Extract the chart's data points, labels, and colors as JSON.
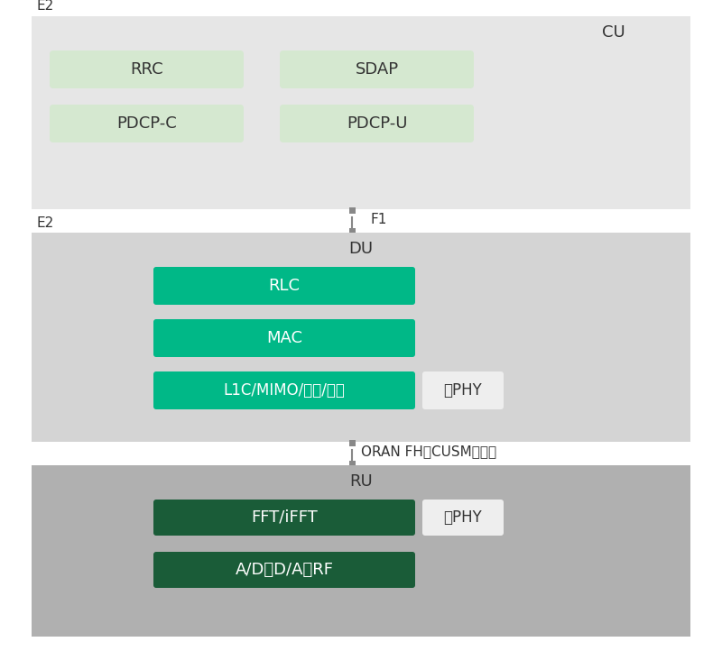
{
  "bg_color": "#ffffff",
  "cu_bg": "#e6e6e6",
  "du_bg": "#d4d4d4",
  "ru_bg": "#b0b0b0",
  "cu_box_fill": "#d5e8d0",
  "du_box_fill": "#00b887",
  "ru_box_fill": "#1a5c38",
  "phy_box_fill": "#eeeeee",
  "white_text": "#ffffff",
  "dark_text": "#333333",
  "connector_color": "#888888",
  "cu_label": "CU",
  "du_label": "DU",
  "ru_label": "RU",
  "e2_label": "E2",
  "f1_label": "F1",
  "oran_label": "ORAN FH（CUSM平面）",
  "cu_boxes_left": [
    "RRC",
    "PDCP-C"
  ],
  "cu_boxes_right": [
    "SDAP",
    "PDCP-U"
  ],
  "du_boxes": [
    "RLC",
    "MAC",
    "L1C/MIMO/模块/编码"
  ],
  "du_phy_label": "高PHY",
  "ru_boxes": [
    "FFT/iFFT",
    "A/D、D/A、RF"
  ],
  "ru_phy_label": "低PHY",
  "figw": 8.0,
  "figh": 7.22
}
